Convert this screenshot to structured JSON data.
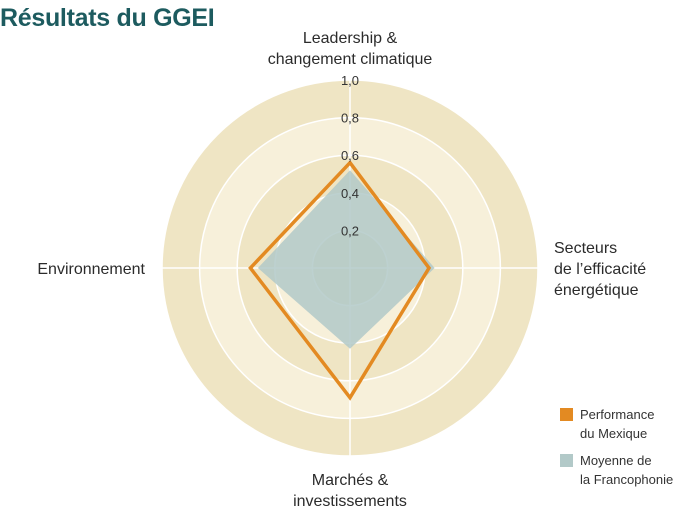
{
  "title": "Résultats du GGEI",
  "chart_data": {
    "type": "radar",
    "axes": [
      {
        "key": "top",
        "label_lines": [
          "Leadership &",
          "changement climatique"
        ]
      },
      {
        "key": "right",
        "label_lines": [
          "Secteurs",
          "de l’efficacité",
          "énergétique"
        ]
      },
      {
        "key": "bottom",
        "label_lines": [
          "Marchés &",
          "investissements"
        ]
      },
      {
        "key": "left",
        "label_lines": [
          "Environnement"
        ]
      }
    ],
    "ticks": [
      "0,2",
      "0,4",
      "0,6",
      "0,8",
      "1,0"
    ],
    "tick_values": [
      0.2,
      0.4,
      0.6,
      0.8,
      1.0
    ],
    "range": [
      0,
      1.0
    ],
    "series": [
      {
        "name_lines": [
          "Performance",
          "du Mexique"
        ],
        "values": [
          0.56,
          0.42,
          0.69,
          0.53
        ],
        "color": "#e38a22",
        "style": "outline"
      },
      {
        "name_lines": [
          "Moyenne de",
          "la Francophonie"
        ],
        "values": [
          0.52,
          0.45,
          0.43,
          0.49
        ],
        "color": "#b2c9c8",
        "style": "fill"
      }
    ],
    "colors": {
      "ring_outer": "#efe5c4",
      "ring_alt": "#f7f0da",
      "ring_center": "#ece2c1",
      "gridline": "#ffffff"
    }
  }
}
